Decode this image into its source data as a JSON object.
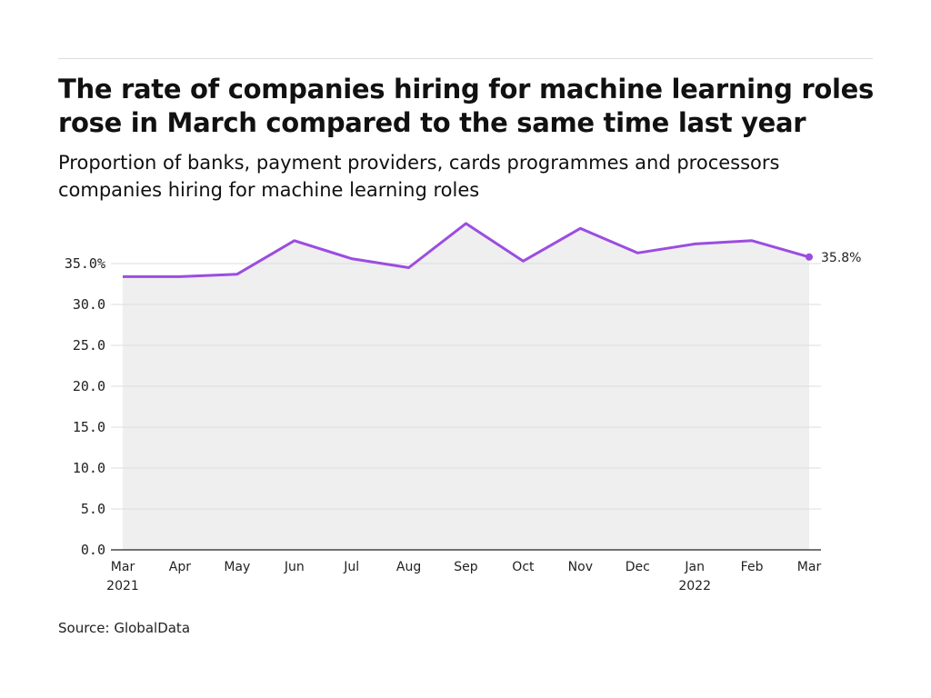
{
  "title": "The rate of companies hiring for machine learning roles rose in March compared to the same time last year",
  "subtitle": "Proportion of banks, payment providers, cards programmes and processors companies hiring for machine learning roles",
  "source": "Source: GlobalData",
  "chart_data": {
    "type": "area",
    "categories": [
      "Mar 2021",
      "Apr",
      "May",
      "Jun",
      "Jul",
      "Aug",
      "Sep",
      "Oct",
      "Nov",
      "Dec",
      "Jan 2022",
      "Feb",
      "Mar"
    ],
    "x_tick_labels": [
      [
        "Mar",
        "2021"
      ],
      [
        "Apr"
      ],
      [
        "May"
      ],
      [
        "Jun"
      ],
      [
        "Jul"
      ],
      [
        "Aug"
      ],
      [
        "Sep"
      ],
      [
        "Oct"
      ],
      [
        "Nov"
      ],
      [
        "Dec"
      ],
      [
        "Jan",
        "2022"
      ],
      [
        "Feb"
      ],
      [
        "Mar"
      ]
    ],
    "values": [
      33.4,
      33.4,
      33.7,
      37.8,
      35.6,
      34.5,
      39.9,
      35.3,
      39.3,
      36.3,
      37.4,
      37.8,
      35.8
    ],
    "y_ticks": [
      0,
      5,
      10,
      15,
      20,
      25,
      30,
      35
    ],
    "y_tick_labels": [
      "0.0",
      "5.0",
      "10.0",
      "15.0",
      "20.0",
      "25.0",
      "30.0",
      "35.0%"
    ],
    "ylim": [
      0,
      40
    ],
    "end_label": "35.8%",
    "grid": true,
    "line_color": "#9b4de0",
    "fill_color": "#efefef"
  }
}
